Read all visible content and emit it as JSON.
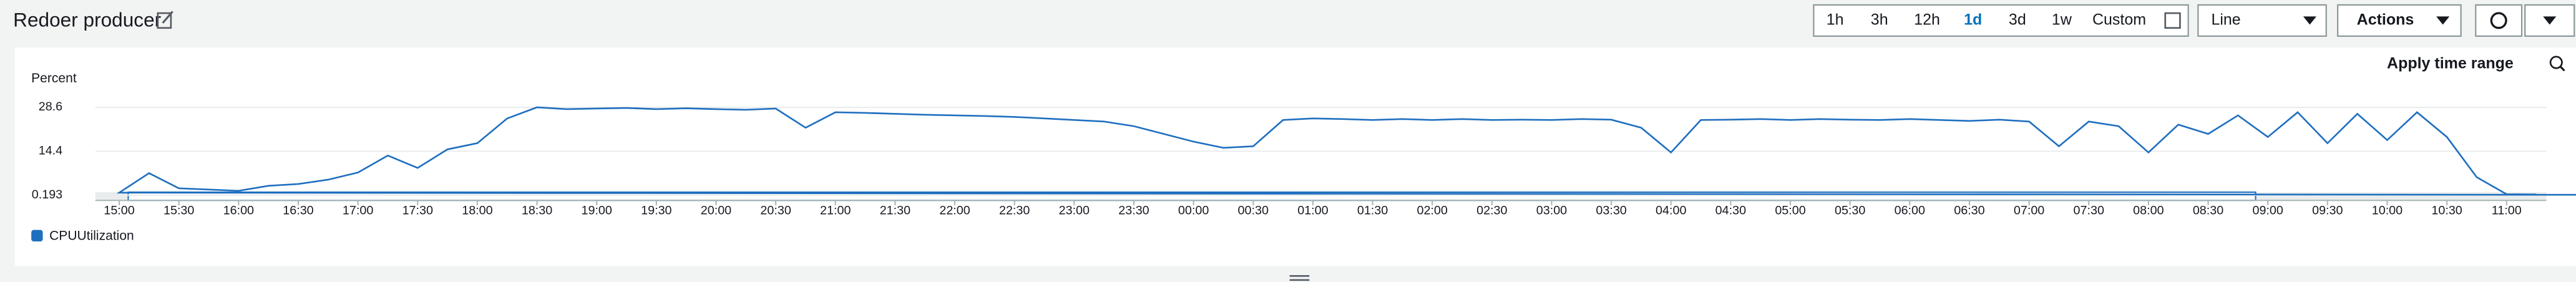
{
  "header": {
    "title": "Redoer producer",
    "ranges": [
      "1h",
      "3h",
      "12h",
      "1d",
      "3d",
      "1w",
      "Custom"
    ],
    "view": "Line",
    "actions": "Actions"
  },
  "apply": "Apply time range",
  "chart_data": {
    "type": "line",
    "ylabel": "Percent",
    "xlim": [
      "14:48",
      "11:20"
    ],
    "xticks": [
      "15:00",
      "15:30",
      "16:00",
      "16:30",
      "17:00",
      "17:30",
      "18:00",
      "18:30",
      "19:00",
      "19:30",
      "20:00",
      "20:30",
      "21:00",
      "21:30",
      "22:00",
      "22:30",
      "23:00",
      "23:30",
      "00:00",
      "00:30",
      "01:00",
      "01:30",
      "02:00",
      "02:30",
      "03:00",
      "03:30",
      "04:00",
      "04:30",
      "05:00",
      "05:30",
      "06:00",
      "06:30",
      "07:00",
      "07:30",
      "08:00",
      "08:30",
      "09:00",
      "09:30",
      "10:00",
      "10:30",
      "11:00"
    ],
    "ylim": [
      -1.5,
      32.5
    ],
    "yticks": [
      0.193,
      14.4,
      28.6
    ],
    "grid": true,
    "x": [
      "14:45",
      "15:00",
      "15:15",
      "15:30",
      "15:45",
      "16:00",
      "16:15",
      "16:30",
      "16:45",
      "17:00",
      "17:15",
      "17:30",
      "17:45",
      "18:00",
      "18:15",
      "18:30",
      "18:45",
      "19:00",
      "19:15",
      "19:30",
      "19:45",
      "20:00",
      "20:15",
      "20:30",
      "20:45",
      "21:00",
      "21:15",
      "21:30",
      "21:45",
      "22:00",
      "22:15",
      "22:30",
      "22:45",
      "23:00",
      "23:15",
      "23:30",
      "23:45",
      "00:00",
      "00:15",
      "00:30",
      "00:45",
      "01:00",
      "01:15",
      "01:30",
      "01:45",
      "02:00",
      "02:15",
      "02:30",
      "02:45",
      "03:00",
      "03:15",
      "03:30",
      "03:45",
      "04:00",
      "04:15",
      "04:30",
      "04:45",
      "05:00",
      "05:15",
      "05:30",
      "05:45",
      "06:00",
      "06:15",
      "06:30",
      "06:45",
      "07:00",
      "07:15",
      "07:30",
      "07:45",
      "08:00",
      "08:15",
      "08:30",
      "08:45",
      "09:00",
      "09:15",
      "09:30",
      "09:45",
      "10:00",
      "10:15",
      "10:30",
      "10:45",
      "11:00",
      "11:15"
    ],
    "series": [
      {
        "name": "CPUUtilization",
        "color": "#1f6fbf",
        "values": [
          0.2,
          1.0,
          7.3,
          2.4,
          2.0,
          1.6,
          3.2,
          3.8,
          5.2,
          7.5,
          13,
          9,
          15,
          17,
          25,
          28.6,
          28,
          28.2,
          28.4,
          28,
          28.3,
          28,
          27.8,
          28.2,
          22,
          27,
          26.8,
          26.5,
          26.2,
          26,
          25.8,
          25.5,
          25,
          24.5,
          24,
          22.5,
          20,
          17.5,
          15.5,
          16,
          24.5,
          25,
          24.8,
          24.5,
          24.8,
          24.5,
          24.8,
          24.5,
          24.6,
          24.5,
          24.8,
          24.6,
          22,
          14,
          24.5,
          24.6,
          24.8,
          24.5,
          24.8,
          24.6,
          24.5,
          24.8,
          24.5,
          24.2,
          24.6,
          24,
          16,
          24,
          22.5,
          14,
          23,
          20,
          26,
          19,
          27,
          17,
          26.5,
          18,
          27,
          19,
          6,
          0.5,
          0.4
        ]
      }
    ]
  }
}
